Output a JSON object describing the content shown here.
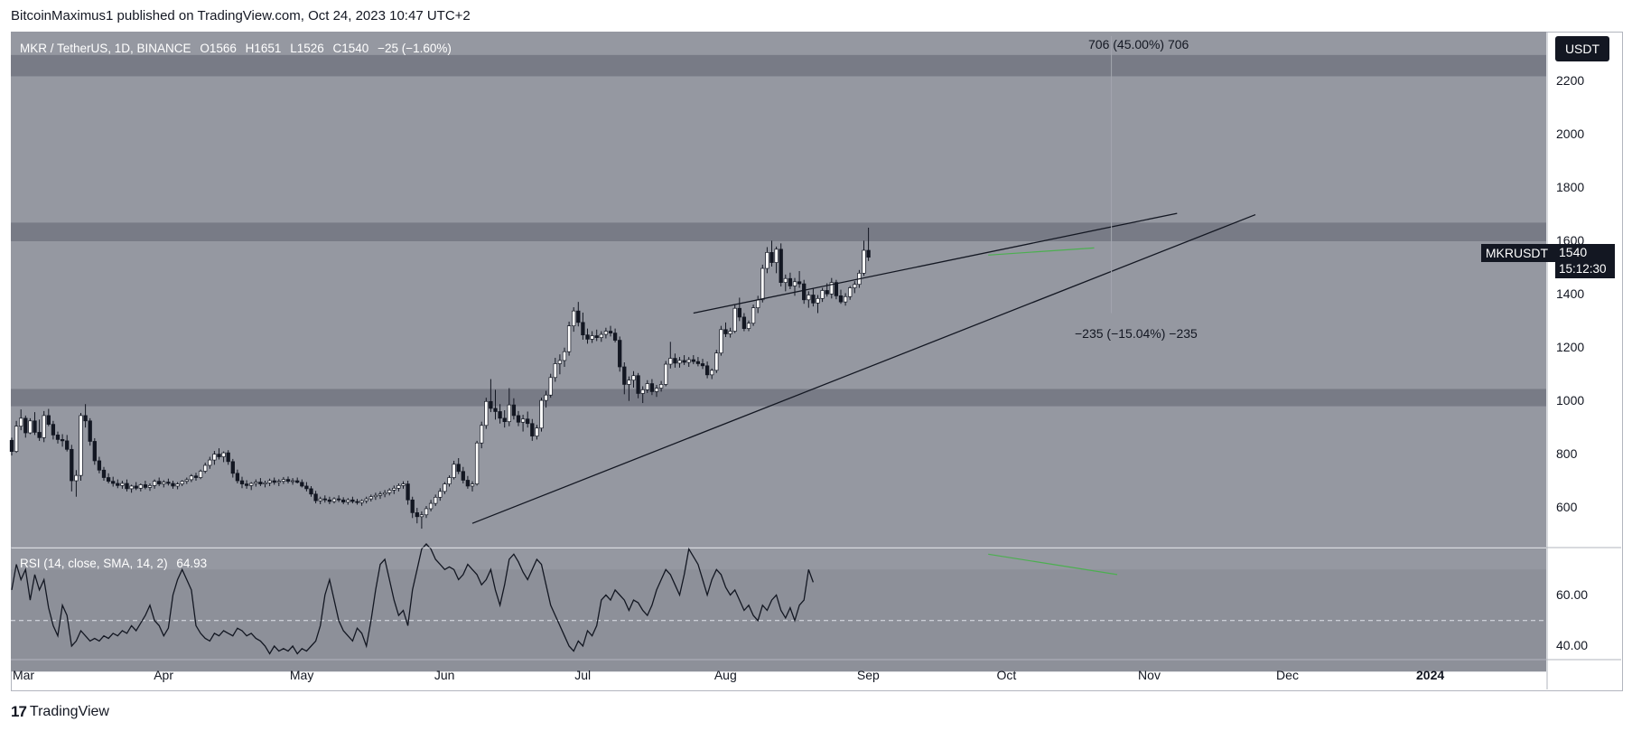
{
  "header": {
    "published": "BitcoinMaximus1 published on TradingView.com, Oct 24, 2023 10:47 UTC+2"
  },
  "legend": {
    "symbol": "MKR / TetherUS, 1D, BINANCE",
    "open": "O1566",
    "high": "H1651",
    "low": "L1526",
    "close": "C1540",
    "change": "−25 (−1.60%)"
  },
  "price_scale": {
    "unit": "USDT",
    "ticks": [
      "2200",
      "2000",
      "1800",
      "1600",
      "1400",
      "1200",
      "1000",
      "800",
      "600"
    ]
  },
  "price_badge": {
    "symbol": "MKRUSDT",
    "price": "1540",
    "countdown": "15:12:30"
  },
  "measurements": {
    "up": "706 (45.00%) 706",
    "down": "−235 (−15.04%) −235"
  },
  "rsi": {
    "label": "RSI (14, close, SMA, 14, 2)",
    "value": "64.93",
    "ticks": [
      "60.00",
      "40.00"
    ]
  },
  "time_axis": [
    "Mar",
    "Apr",
    "May",
    "Jun",
    "Jul",
    "Aug",
    "Sep",
    "Oct",
    "Nov",
    "Dec",
    "2024"
  ],
  "footer": {
    "brand": "TradingView"
  },
  "colors": {
    "background": "#9598a1",
    "zone": "#787b86",
    "candle_up": "#ffffff",
    "candle_down": "#131722",
    "divergence": "#4caf50"
  },
  "chart_data": {
    "type": "candlestick",
    "ylim": [
      450,
      2380
    ],
    "candles_ohlc_daily_from_Mar_1_2023": [
      [
        852,
        862,
        795,
        810
      ],
      [
        810,
        925,
        805,
        905
      ],
      [
        905,
        968,
        890,
        935
      ],
      [
        935,
        945,
        862,
        880
      ],
      [
        880,
        935,
        875,
        925
      ],
      [
        925,
        958,
        872,
        882
      ],
      [
        882,
        930,
        850,
        862
      ],
      [
        862,
        962,
        845,
        945
      ],
      [
        945,
        970,
        905,
        912
      ],
      [
        912,
        925,
        855,
        872
      ],
      [
        872,
        885,
        840,
        855
      ],
      [
        855,
        875,
        828,
        850
      ],
      [
        850,
        872,
        810,
        818
      ],
      [
        818,
        835,
        660,
        700
      ],
      [
        700,
        740,
        640,
        720
      ],
      [
        720,
        955,
        700,
        945
      ],
      [
        945,
        988,
        900,
        925
      ],
      [
        925,
        935,
        832,
        848
      ],
      [
        848,
        860,
        760,
        775
      ],
      [
        775,
        790,
        728,
        740
      ],
      [
        740,
        752,
        700,
        712
      ],
      [
        712,
        728,
        690,
        698
      ],
      [
        698,
        715,
        678,
        690
      ],
      [
        690,
        705,
        672,
        682
      ],
      [
        682,
        700,
        670,
        690
      ],
      [
        690,
        705,
        660,
        670
      ],
      [
        670,
        685,
        655,
        680
      ],
      [
        680,
        695,
        665,
        672
      ],
      [
        672,
        690,
        660,
        685
      ],
      [
        685,
        700,
        668,
        675
      ],
      [
        675,
        690,
        662,
        682
      ],
      [
        682,
        705,
        670,
        698
      ],
      [
        698,
        712,
        680,
        688
      ],
      [
        688,
        702,
        675,
        695
      ],
      [
        695,
        708,
        682,
        690
      ],
      [
        690,
        700,
        670,
        680
      ],
      [
        680,
        695,
        668,
        688
      ],
      [
        688,
        702,
        680,
        698
      ],
      [
        698,
        712,
        688,
        704
      ],
      [
        704,
        725,
        695,
        718
      ],
      [
        718,
        730,
        700,
        712
      ],
      [
        712,
        742,
        706,
        736
      ],
      [
        736,
        768,
        728,
        758
      ],
      [
        758,
        790,
        745,
        778
      ],
      [
        778,
        812,
        760,
        800
      ],
      [
        800,
        822,
        780,
        790
      ],
      [
        790,
        810,
        770,
        805
      ],
      [
        805,
        815,
        760,
        772
      ],
      [
        772,
        782,
        712,
        728
      ],
      [
        728,
        742,
        690,
        700
      ],
      [
        700,
        715,
        672,
        688
      ],
      [
        688,
        702,
        670,
        682
      ],
      [
        682,
        695,
        665,
        690
      ],
      [
        690,
        705,
        678,
        695
      ],
      [
        695,
        710,
        680,
        688
      ],
      [
        688,
        700,
        675,
        692
      ],
      [
        692,
        708,
        680,
        700
      ],
      [
        700,
        712,
        685,
        694
      ],
      [
        694,
        706,
        680,
        698
      ],
      [
        698,
        714,
        688,
        705
      ],
      [
        705,
        716,
        690,
        698
      ],
      [
        698,
        710,
        685,
        700
      ],
      [
        700,
        712,
        690,
        694
      ],
      [
        694,
        705,
        675,
        680
      ],
      [
        680,
        695,
        660,
        670
      ],
      [
        670,
        680,
        640,
        650
      ],
      [
        650,
        662,
        615,
        625
      ],
      [
        625,
        640,
        612,
        632
      ],
      [
        632,
        645,
        618,
        628
      ],
      [
        628,
        640,
        612,
        622
      ],
      [
        622,
        638,
        615,
        632
      ],
      [
        632,
        645,
        620,
        628
      ],
      [
        628,
        638,
        612,
        620
      ],
      [
        620,
        635,
        610,
        628
      ],
      [
        628,
        640,
        615,
        622
      ],
      [
        622,
        632,
        610,
        618
      ],
      [
        618,
        630,
        606,
        625
      ],
      [
        625,
        640,
        615,
        632
      ],
      [
        632,
        648,
        622,
        640
      ],
      [
        640,
        655,
        628,
        645
      ],
      [
        645,
        660,
        632,
        650
      ],
      [
        650,
        665,
        638,
        655
      ],
      [
        655,
        672,
        645,
        665
      ],
      [
        665,
        682,
        650,
        672
      ],
      [
        672,
        690,
        660,
        682
      ],
      [
        682,
        698,
        670,
        688
      ],
      [
        688,
        700,
        610,
        628
      ],
      [
        628,
        640,
        560,
        580
      ],
      [
        580,
        598,
        540,
        565
      ],
      [
        565,
        585,
        520,
        572
      ],
      [
        572,
        605,
        560,
        595
      ],
      [
        595,
        628,
        585,
        615
      ],
      [
        615,
        648,
        605,
        638
      ],
      [
        638,
        672,
        625,
        660
      ],
      [
        660,
        695,
        650,
        688
      ],
      [
        688,
        720,
        678,
        712
      ],
      [
        712,
        775,
        705,
        762
      ],
      [
        762,
        785,
        725,
        735
      ],
      [
        735,
        752,
        690,
        702
      ],
      [
        702,
        718,
        670,
        680
      ],
      [
        680,
        698,
        660,
        688
      ],
      [
        688,
        850,
        682,
        842
      ],
      [
        842,
        922,
        822,
        908
      ],
      [
        908,
        1012,
        895,
        998
      ],
      [
        998,
        1082,
        958,
        972
      ],
      [
        972,
        1042,
        930,
        960
      ],
      [
        960,
        988,
        915,
        935
      ],
      [
        935,
        965,
        900,
        922
      ],
      [
        922,
        1048,
        905,
        985
      ],
      [
        985,
        1010,
        930,
        945
      ],
      [
        945,
        962,
        905,
        920
      ],
      [
        920,
        948,
        885,
        932
      ],
      [
        932,
        960,
        900,
        915
      ],
      [
        915,
        932,
        850,
        868
      ],
      [
        868,
        910,
        855,
        898
      ],
      [
        898,
        1012,
        885,
        1002
      ],
      [
        1002,
        1038,
        975,
        1022
      ],
      [
        1022,
        1102,
        1012,
        1088
      ],
      [
        1088,
        1162,
        1072,
        1140
      ],
      [
        1140,
        1175,
        1100,
        1152
      ],
      [
        1152,
        1200,
        1128,
        1185
      ],
      [
        1185,
        1298,
        1170,
        1282
      ],
      [
        1282,
        1352,
        1260,
        1338
      ],
      [
        1338,
        1372,
        1280,
        1295
      ],
      [
        1295,
        1332,
        1230,
        1248
      ],
      [
        1248,
        1272,
        1215,
        1232
      ],
      [
        1232,
        1262,
        1218,
        1245
      ],
      [
        1245,
        1268,
        1225,
        1238
      ],
      [
        1238,
        1262,
        1222,
        1250
      ],
      [
        1250,
        1275,
        1235,
        1262
      ],
      [
        1262,
        1282,
        1242,
        1255
      ],
      [
        1255,
        1272,
        1220,
        1228
      ],
      [
        1228,
        1242,
        1110,
        1128
      ],
      [
        1128,
        1145,
        1025,
        1062
      ],
      [
        1062,
        1092,
        1000,
        1078
      ],
      [
        1078,
        1112,
        1050,
        1095
      ],
      [
        1095,
        1105,
        1010,
        1028
      ],
      [
        1028,
        1055,
        992,
        1042
      ],
      [
        1042,
        1078,
        1030,
        1065
      ],
      [
        1065,
        1082,
        1022,
        1035
      ],
      [
        1035,
        1060,
        1015,
        1048
      ],
      [
        1048,
        1075,
        1035,
        1062
      ],
      [
        1062,
        1150,
        1055,
        1138
      ],
      [
        1138,
        1222,
        1122,
        1160
      ],
      [
        1160,
        1178,
        1125,
        1142
      ],
      [
        1142,
        1165,
        1125,
        1152
      ],
      [
        1152,
        1172,
        1135,
        1145
      ],
      [
        1145,
        1165,
        1128,
        1155
      ],
      [
        1155,
        1172,
        1138,
        1148
      ],
      [
        1148,
        1165,
        1130,
        1140
      ],
      [
        1140,
        1158,
        1120,
        1132
      ],
      [
        1132,
        1148,
        1085,
        1098
      ],
      [
        1098,
        1122,
        1082,
        1115
      ],
      [
        1115,
        1192,
        1105,
        1180
      ],
      [
        1180,
        1282,
        1170,
        1268
      ],
      [
        1268,
        1295,
        1240,
        1252
      ],
      [
        1252,
        1275,
        1238,
        1262
      ],
      [
        1262,
        1362,
        1255,
        1348
      ],
      [
        1348,
        1388,
        1300,
        1315
      ],
      [
        1315,
        1330,
        1262,
        1272
      ],
      [
        1272,
        1302,
        1262,
        1292
      ],
      [
        1292,
        1362,
        1282,
        1350
      ],
      [
        1350,
        1395,
        1330,
        1380
      ],
      [
        1380,
        1512,
        1370,
        1498
      ],
      [
        1498,
        1578,
        1480,
        1558
      ],
      [
        1558,
        1602,
        1505,
        1520
      ],
      [
        1520,
        1580,
        1480,
        1570
      ],
      [
        1570,
        1592,
        1430,
        1445
      ],
      [
        1445,
        1475,
        1412,
        1460
      ],
      [
        1460,
        1482,
        1420,
        1432
      ],
      [
        1432,
        1462,
        1395,
        1448
      ],
      [
        1448,
        1488,
        1425,
        1440
      ],
      [
        1440,
        1455,
        1365,
        1380
      ],
      [
        1380,
        1412,
        1350,
        1398
      ],
      [
        1398,
        1425,
        1355,
        1368
      ],
      [
        1368,
        1398,
        1330,
        1385
      ],
      [
        1385,
        1425,
        1372,
        1415
      ],
      [
        1415,
        1442,
        1392,
        1402
      ],
      [
        1402,
        1462,
        1385,
        1445
      ],
      [
        1445,
        1455,
        1382,
        1395
      ],
      [
        1395,
        1418,
        1365,
        1372
      ],
      [
        1372,
        1405,
        1358,
        1392
      ],
      [
        1392,
        1432,
        1380,
        1425
      ],
      [
        1425,
        1450,
        1405,
        1438
      ],
      [
        1438,
        1492,
        1425,
        1480
      ],
      [
        1480,
        1602,
        1470,
        1566
      ],
      [
        1566,
        1651,
        1526,
        1540
      ]
    ],
    "zones": [
      [
        2220,
        2300
      ],
      [
        1600,
        1670
      ],
      [
        980,
        1045
      ]
    ],
    "trendlines": [
      {
        "from": [
          "Jun 9",
          540
        ],
        "to": [
          "Nov 26",
          1700
        ]
      },
      {
        "from": [
          "Jul 27",
          1330
        ],
        "to": [
          "Nov 9",
          1705
        ]
      }
    ],
    "rsi_series": [
      62,
      72,
      66,
      70,
      58,
      68,
      62,
      66,
      55,
      48,
      44,
      56,
      52,
      40,
      42,
      46,
      44,
      42,
      43,
      42,
      44,
      43,
      45,
      44,
      46,
      45,
      48,
      46,
      49,
      52,
      56,
      50,
      48,
      44,
      47,
      60,
      66,
      70,
      66,
      62,
      48,
      45,
      43,
      42,
      45,
      44,
      46,
      45,
      44,
      47,
      46,
      44,
      45,
      43,
      42,
      40,
      37,
      40,
      38,
      39,
      38,
      40,
      37,
      39,
      38,
      40,
      42,
      48,
      60,
      66,
      58,
      50,
      46,
      44,
      42,
      47,
      45,
      40,
      50,
      62,
      72,
      74,
      66,
      58,
      52,
      54,
      48,
      62,
      70,
      78,
      80,
      78,
      74,
      72,
      70,
      71,
      70,
      66,
      68,
      72,
      70,
      68,
      64,
      66,
      70,
      62,
      56,
      64,
      74,
      76,
      73,
      69,
      66,
      70,
      74,
      72,
      64,
      56,
      52,
      48,
      44,
      40,
      38,
      42,
      40,
      46,
      44,
      48,
      58,
      60,
      58,
      62,
      60,
      58,
      54,
      58,
      57,
      54,
      52,
      56,
      62,
      66,
      70,
      68,
      64,
      60,
      68,
      78,
      75,
      72,
      66,
      60,
      66,
      70,
      68,
      63,
      60,
      62,
      58,
      54,
      56,
      52,
      50,
      56,
      54,
      58,
      60,
      54,
      51,
      55,
      50,
      56,
      58,
      70,
      65
    ]
  }
}
